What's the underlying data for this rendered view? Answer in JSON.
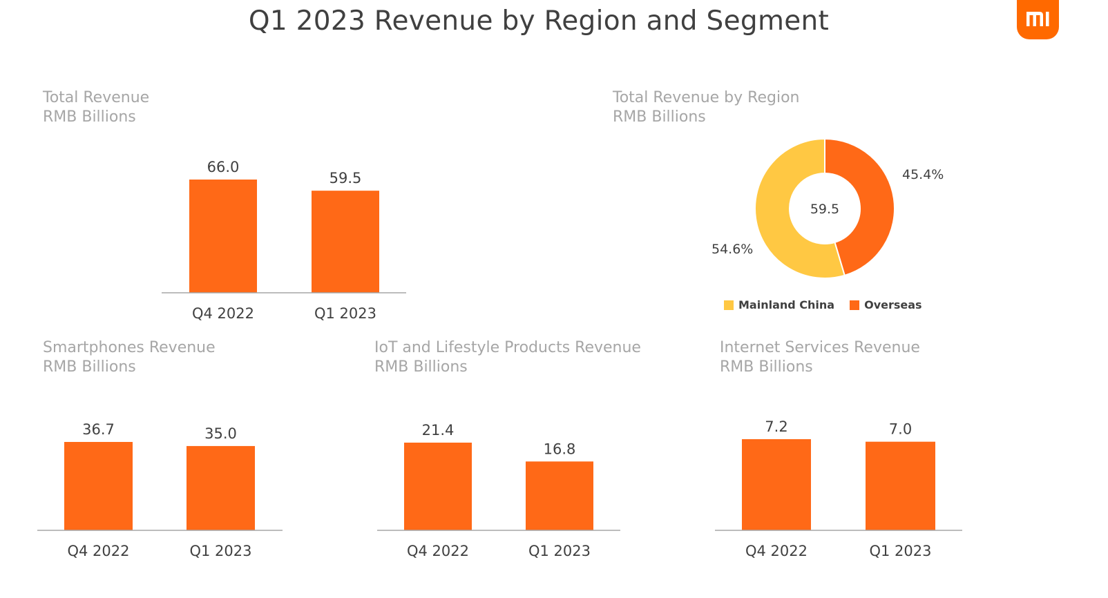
{
  "page_title": "Q1 2023 Revenue by Region and Segment",
  "colors": {
    "bar": "#ff6917",
    "mainland": "#ffc843",
    "overseas": "#ff6917",
    "axis": "#a6a6a6",
    "logo": "#ff6900"
  },
  "logo": {
    "icon": "mi-logo"
  },
  "chart_data": [
    {
      "type": "bar",
      "title": "Total Revenue",
      "subtitle": "RMB Billions",
      "categories": [
        "Q4 2022",
        "Q1 2023"
      ],
      "values": [
        66.0,
        59.5
      ],
      "value_labels": [
        "66.0",
        "59.5"
      ]
    },
    {
      "type": "pie",
      "title": "Total Revenue by Region",
      "subtitle": "RMB Billions",
      "donut": true,
      "center_label": "59.5",
      "slices": [
        {
          "name": "Mainland China",
          "value": 54.6,
          "label": "54.6%"
        },
        {
          "name": "Overseas",
          "value": 45.4,
          "label": "45.4%"
        }
      ],
      "legend": [
        "Mainland China",
        "Overseas"
      ],
      "legend_position": "bottom"
    },
    {
      "type": "bar",
      "title": "Smartphones Revenue",
      "subtitle": "RMB Billions",
      "categories": [
        "Q4 2022",
        "Q1 2023"
      ],
      "values": [
        36.7,
        35.0
      ],
      "value_labels": [
        "36.7",
        "35.0"
      ]
    },
    {
      "type": "bar",
      "title": "IoT and Lifestyle Products Revenue",
      "subtitle": "RMB Billions",
      "categories": [
        "Q4 2022",
        "Q1 2023"
      ],
      "values": [
        21.4,
        16.8
      ],
      "value_labels": [
        "21.4",
        "16.8"
      ]
    },
    {
      "type": "bar",
      "title": "Internet Services Revenue",
      "subtitle": "RMB Billions",
      "categories": [
        "Q4 2022",
        "Q1 2023"
      ],
      "values": [
        7.2,
        7.0
      ],
      "value_labels": [
        "7.2",
        "7.0"
      ]
    }
  ]
}
